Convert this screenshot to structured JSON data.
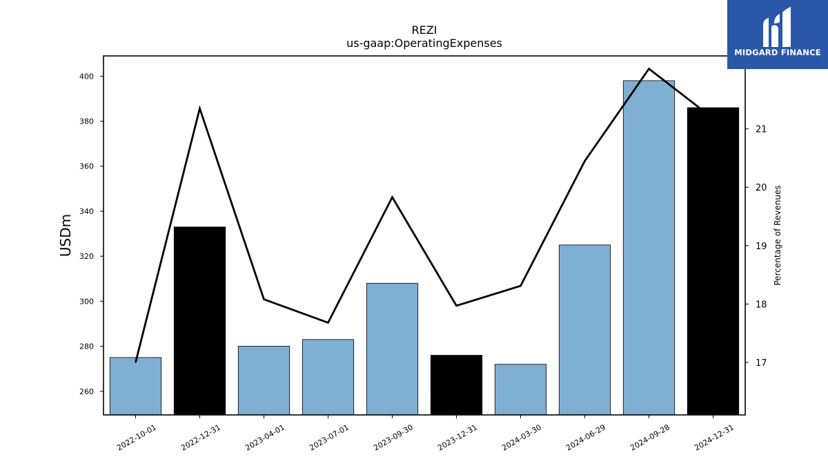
{
  "logo": {
    "text": "MIDGARD FINANCE",
    "icon": "midgard-logo-icon",
    "background": "#2a57a8"
  },
  "chart_data": {
    "type": "bar",
    "title": "REZI",
    "subtitle": "us-gaap:OperatingExpenses",
    "ylabel": "USDm",
    "y2label": "Percentage of Revenues",
    "categories": [
      "2022-10-01",
      "2022-12-31",
      "2023-04-01",
      "2023-07-01",
      "2023-09-30",
      "2023-12-31",
      "2024-03-30",
      "2024-06-29",
      "2024-09-28",
      "2024-12-31"
    ],
    "series": [
      {
        "type": "bar",
        "values": [
          275,
          333,
          280,
          283,
          308,
          276,
          272,
          325,
          398,
          386
        ],
        "colors": [
          "#7fafd3",
          "#000000",
          "#7fafd3",
          "#7fafd3",
          "#7fafd3",
          "#000000",
          "#7fafd3",
          "#7fafd3",
          "#7fafd3",
          "#000000"
        ]
      },
      {
        "type": "line",
        "axis": "right",
        "values": [
          17.0,
          21.35,
          18.08,
          17.68,
          19.83,
          17.97,
          18.31,
          20.45,
          22.03,
          21.18
        ],
        "color": "#000000"
      }
    ],
    "ylim": [
      249.5,
      409
    ],
    "yticks": [
      260,
      280,
      300,
      320,
      340,
      360,
      380,
      400
    ],
    "y2lim": [
      16.1,
      22.25
    ],
    "y2ticks": [
      17,
      18,
      19,
      20,
      21
    ],
    "grid": false
  }
}
